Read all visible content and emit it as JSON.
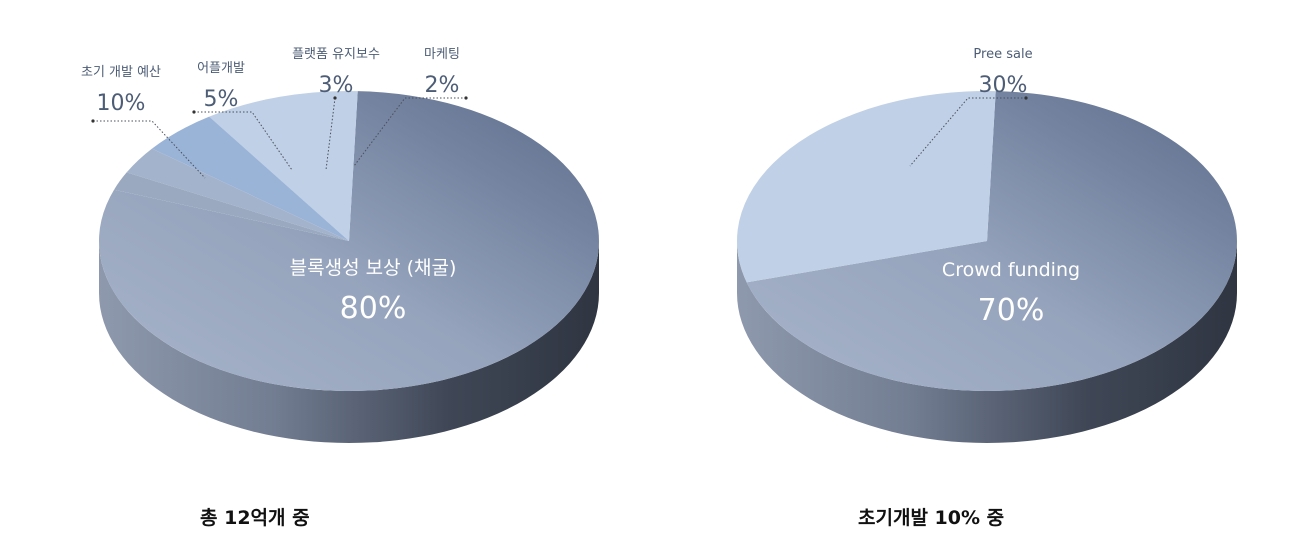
{
  "chart_data": [
    {
      "type": "pie",
      "style": "3d",
      "caption": "총 12억개 중",
      "slices": [
        {
          "label": "블록생성 보상 (채굴)",
          "value": 80,
          "value_label": "80%"
        },
        {
          "label": "초기 개발 예산",
          "value": 10,
          "value_label": "10%"
        },
        {
          "label": "어플개발",
          "value": 5,
          "value_label": "5%"
        },
        {
          "label": "플랫폼 유지보수",
          "value": 3,
          "value_label": "3%"
        },
        {
          "label": "마케팅",
          "value": 2,
          "value_label": "2%"
        }
      ]
    },
    {
      "type": "pie",
      "style": "3d",
      "caption": "초기개발 10% 중",
      "slices": [
        {
          "label": "Crowd funding",
          "value": 70,
          "value_label": "70%"
        },
        {
          "label": "Pree sale",
          "value": 30,
          "value_label": "30%"
        }
      ]
    }
  ],
  "colors": {
    "main_slice_dark": "#5d6f8e",
    "main_slice_light": "#9eacc4",
    "rim_light": "#8b96aa",
    "rim_dark": "#343b48",
    "slice_pale": "#c0d0e6",
    "slice_blue": "#9ab4d8",
    "slice_mid": "#a3b3cc",
    "slice_grey": "#9aa9c0",
    "label_text": "#4d5d76"
  }
}
